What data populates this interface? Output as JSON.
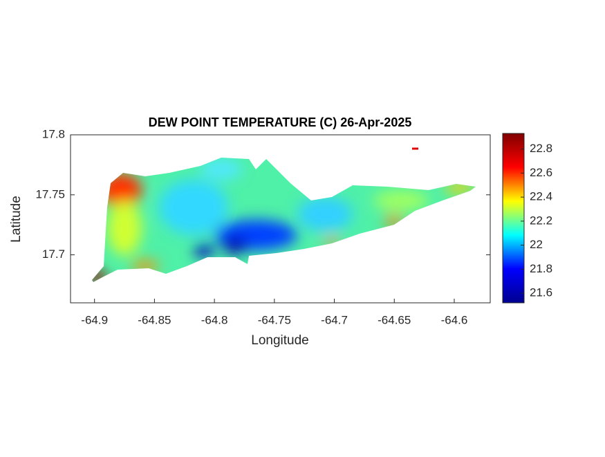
{
  "chart_data": {
    "type": "map",
    "title": "DEW POINT TEMPERATURE (C) 26-Apr-2025",
    "xlabel": "Longitude",
    "ylabel": "Latitude",
    "xlim": [
      -64.92,
      -64.57
    ],
    "xticks": [
      -64.9,
      -64.85,
      -64.8,
      -64.75,
      -64.7,
      -64.65,
      -64.6
    ],
    "ylim": [
      17.66,
      17.8
    ],
    "yticks": [
      17.7,
      17.75,
      17.8
    ],
    "clim": [
      21.52,
      22.93
    ],
    "cticks": [
      21.6,
      21.8,
      22,
      22.2,
      22.4,
      22.6,
      22.8
    ],
    "colormap": [
      "#00008f",
      "#0000ff",
      "#00ffff",
      "#ffff00",
      "#ff0000",
      "#800000"
    ]
  }
}
